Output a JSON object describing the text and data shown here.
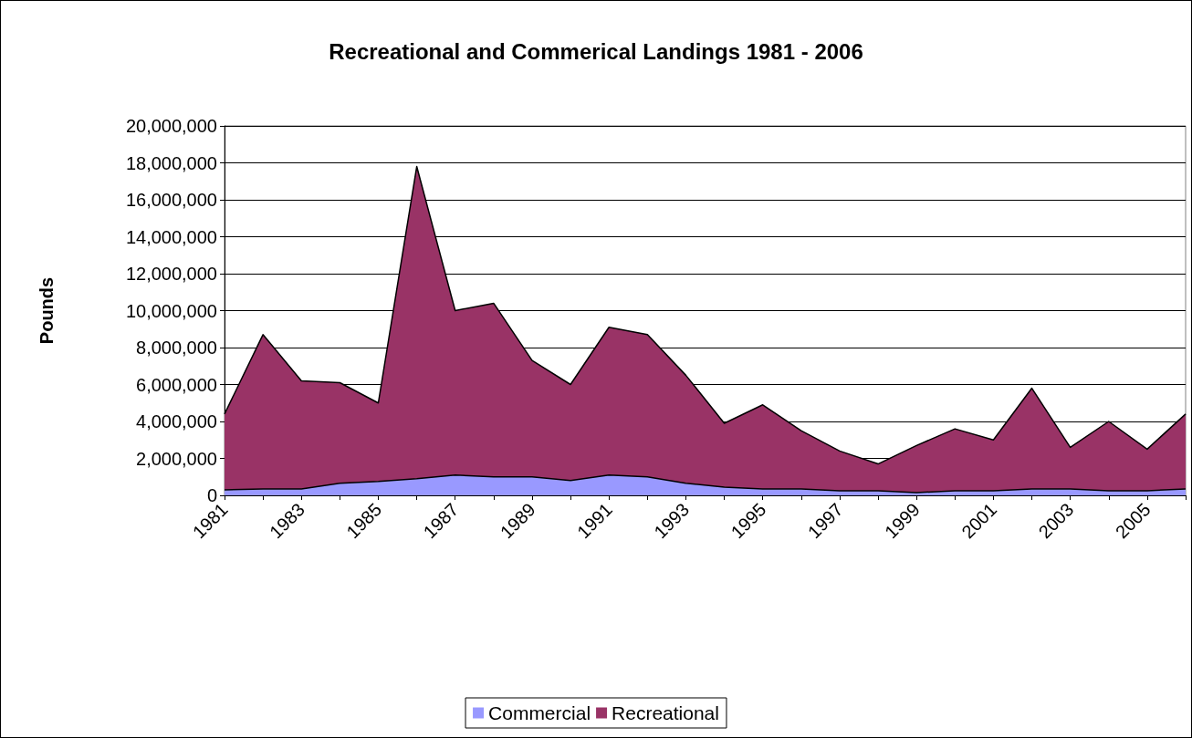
{
  "chart_data": {
    "type": "area",
    "title": "Recreational and Commerical Landings 1981 - 2006",
    "ylabel": "Pounds",
    "categories": [
      "1981",
      null,
      "1983",
      null,
      "1985",
      null,
      "1987",
      null,
      "1989",
      null,
      "1991",
      null,
      "1993",
      null,
      "1995",
      null,
      "1997",
      null,
      "1999",
      null,
      "2001",
      null,
      "2003",
      null,
      "2005",
      null
    ],
    "stacked": true,
    "series": [
      {
        "name": "Commercial",
        "color": "#9999ff",
        "values": [
          300000,
          350000,
          350000,
          650000,
          750000,
          900000,
          1100000,
          1000000,
          1000000,
          800000,
          1100000,
          1000000,
          650000,
          450000,
          350000,
          350000,
          250000,
          250000,
          150000,
          250000,
          250000,
          350000,
          350000,
          250000,
          250000,
          350000
        ]
      },
      {
        "name": "Recreational",
        "color": "#993366",
        "values": [
          4100000,
          8350000,
          5850000,
          5450000,
          4250000,
          16900000,
          8900000,
          9400000,
          6300000,
          5200000,
          8000000,
          7700000,
          5850000,
          3450000,
          4550000,
          3150000,
          2150000,
          1450000,
          2550000,
          3350000,
          2750000,
          5450000,
          2250000,
          3750000,
          2250000,
          4050000
        ]
      }
    ],
    "ylim": [
      0,
      20000000
    ],
    "yticks": [
      {
        "value": 0,
        "label": "0"
      },
      {
        "value": 2000000,
        "label": "2,000,000"
      },
      {
        "value": 4000000,
        "label": "4,000,000"
      },
      {
        "value": 6000000,
        "label": "6,000,000"
      },
      {
        "value": 8000000,
        "label": "8,000,000"
      },
      {
        "value": 10000000,
        "label": "10,000,000"
      },
      {
        "value": 12000000,
        "label": "12,000,000"
      },
      {
        "value": 14000000,
        "label": "14,000,000"
      },
      {
        "value": 16000000,
        "label": "16,000,000"
      },
      {
        "value": 18000000,
        "label": "18,000,000"
      },
      {
        "value": 20000000,
        "label": "20,000,000"
      }
    ],
    "grid": "y",
    "legend": "bottom"
  }
}
